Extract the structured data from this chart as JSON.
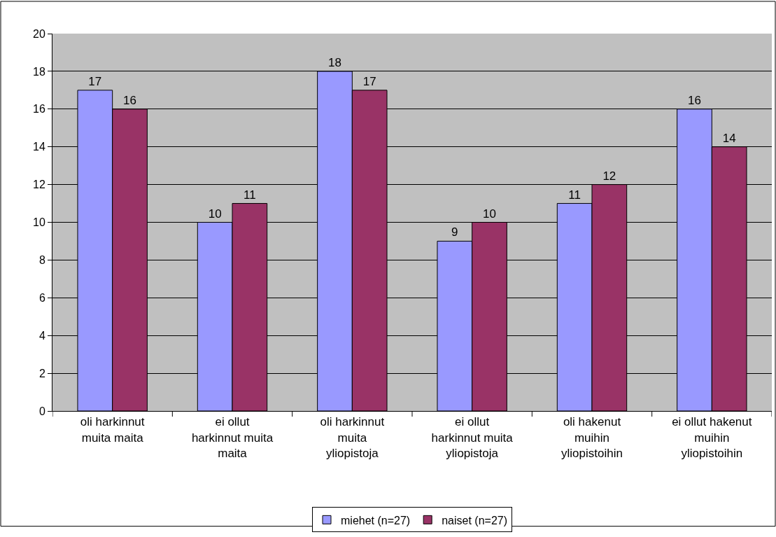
{
  "chart_data": {
    "type": "bar",
    "categories": [
      "oli harkinnut muita maita",
      "ei ollut harkinnut muita maita",
      "oli harkinnut muita yliopistoja",
      "ei ollut harkinnut muita yliopistoja",
      "oli hakenut muihin yliopistoihin",
      "ei ollut hakenut muihin yliopistoihin"
    ],
    "series": [
      {
        "name": "miehet (n=27)",
        "color": "#9999ff",
        "values": [
          17,
          10,
          18,
          9,
          11,
          16
        ]
      },
      {
        "name": "naiset (n=27)",
        "color": "#993366",
        "values": [
          16,
          11,
          17,
          10,
          12,
          14
        ]
      }
    ],
    "ylim": [
      0,
      20
    ],
    "yticks": [
      0,
      2,
      4,
      6,
      8,
      10,
      12,
      14,
      16,
      18,
      20
    ],
    "grid": "y",
    "legend": "bottom",
    "data_labels": true
  }
}
